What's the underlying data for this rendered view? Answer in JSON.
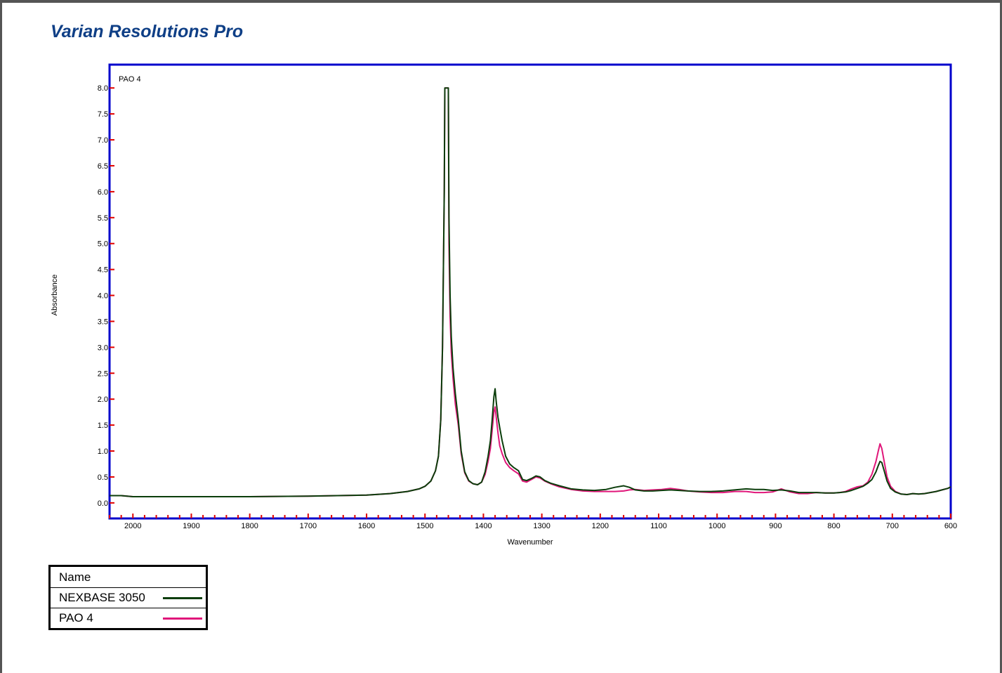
{
  "app_title": "Varian Resolutions Pro",
  "chart_data": {
    "type": "line",
    "title": "PAO 4",
    "xlabel": "Wavenumber",
    "ylabel": "Absorbance",
    "xlim": [
      2040,
      600
    ],
    "ylim": [
      -0.3,
      8.45
    ],
    "x_reversed": true,
    "x_ticks": [
      2000,
      1900,
      1800,
      1700,
      1600,
      1500,
      1400,
      1300,
      1200,
      1100,
      1000,
      900,
      800,
      700,
      600
    ],
    "y_ticks": [
      0.0,
      0.5,
      1.0,
      1.5,
      2.0,
      2.5,
      3.0,
      3.5,
      4.0,
      4.5,
      5.0,
      5.5,
      6.0,
      6.5,
      7.0,
      7.5,
      8.0
    ],
    "y_tick_labels": [
      "0.0",
      "0.5",
      "1.0",
      "1.5",
      "2.0",
      "2.5",
      "3.0",
      "3.5",
      "4.0",
      "4.5",
      "5.0",
      "5.5",
      "6.0",
      "6.5",
      "7.0",
      "7.5",
      "8.0"
    ],
    "grid": false,
    "series": [
      {
        "name": "NEXBASE 3050",
        "color": "#0b3d0b",
        "x": [
          2040,
          2020,
          2000,
          1900,
          1800,
          1700,
          1650,
          1600,
          1560,
          1530,
          1510,
          1500,
          1490,
          1482,
          1477,
          1473,
          1470,
          1467,
          1466,
          1460,
          1459,
          1457,
          1455,
          1452,
          1448,
          1443,
          1438,
          1432,
          1425,
          1418,
          1410,
          1403,
          1397,
          1392,
          1388,
          1385,
          1382,
          1380,
          1378,
          1375,
          1372,
          1368,
          1362,
          1355,
          1348,
          1340,
          1333,
          1326,
          1318,
          1310,
          1303,
          1295,
          1285,
          1270,
          1250,
          1230,
          1210,
          1190,
          1175,
          1160,
          1150,
          1140,
          1125,
          1110,
          1095,
          1080,
          1065,
          1050,
          1030,
          1010,
          990,
          970,
          950,
          935,
          920,
          905,
          890,
          875,
          860,
          845,
          830,
          815,
          800,
          790,
          780,
          770,
          760,
          750,
          742,
          735,
          728,
          724,
          721,
          718,
          714,
          709,
          703,
          695,
          685,
          675,
          665,
          655,
          645,
          635,
          625,
          615,
          605,
          600
        ],
        "y": [
          0.14,
          0.14,
          0.12,
          0.12,
          0.12,
          0.13,
          0.14,
          0.15,
          0.18,
          0.22,
          0.27,
          0.32,
          0.42,
          0.62,
          0.9,
          1.6,
          3.0,
          6.0,
          8.0,
          8.0,
          5.5,
          4.0,
          3.2,
          2.6,
          2.1,
          1.6,
          1.0,
          0.6,
          0.43,
          0.37,
          0.35,
          0.4,
          0.6,
          0.9,
          1.2,
          1.6,
          2.05,
          2.2,
          1.95,
          1.65,
          1.45,
          1.2,
          0.9,
          0.75,
          0.68,
          0.62,
          0.45,
          0.43,
          0.47,
          0.52,
          0.5,
          0.43,
          0.38,
          0.33,
          0.27,
          0.25,
          0.24,
          0.26,
          0.3,
          0.33,
          0.3,
          0.25,
          0.23,
          0.23,
          0.24,
          0.25,
          0.24,
          0.23,
          0.22,
          0.22,
          0.23,
          0.25,
          0.27,
          0.26,
          0.26,
          0.24,
          0.25,
          0.23,
          0.2,
          0.2,
          0.2,
          0.19,
          0.19,
          0.2,
          0.21,
          0.24,
          0.28,
          0.32,
          0.38,
          0.45,
          0.6,
          0.72,
          0.8,
          0.78,
          0.62,
          0.42,
          0.28,
          0.21,
          0.17,
          0.16,
          0.18,
          0.17,
          0.18,
          0.2,
          0.22,
          0.25,
          0.28,
          0.31
        ]
      },
      {
        "name": "PAO 4",
        "color": "#e0177a",
        "x": [
          2040,
          2020,
          2000,
          1900,
          1800,
          1700,
          1650,
          1600,
          1560,
          1530,
          1510,
          1500,
          1490,
          1482,
          1477,
          1473,
          1470,
          1467,
          1466,
          1460,
          1459,
          1457,
          1455,
          1452,
          1448,
          1443,
          1438,
          1432,
          1425,
          1418,
          1410,
          1403,
          1397,
          1392,
          1388,
          1385,
          1382,
          1380,
          1378,
          1375,
          1372,
          1368,
          1362,
          1355,
          1348,
          1340,
          1333,
          1326,
          1318,
          1310,
          1303,
          1295,
          1285,
          1270,
          1250,
          1230,
          1210,
          1190,
          1175,
          1160,
          1150,
          1140,
          1125,
          1110,
          1095,
          1080,
          1065,
          1050,
          1030,
          1010,
          990,
          970,
          950,
          935,
          920,
          905,
          890,
          875,
          860,
          845,
          830,
          815,
          800,
          790,
          780,
          770,
          760,
          750,
          742,
          735,
          728,
          724,
          721,
          718,
          714,
          709,
          703,
          695,
          685,
          675,
          665,
          655,
          645,
          635,
          625,
          615,
          605,
          600
        ],
        "y": [
          0.14,
          0.14,
          0.12,
          0.12,
          0.12,
          0.13,
          0.14,
          0.15,
          0.18,
          0.22,
          0.27,
          0.32,
          0.42,
          0.62,
          0.9,
          1.6,
          3.0,
          6.0,
          8.0,
          8.0,
          5.0,
          3.6,
          2.9,
          2.4,
          1.9,
          1.5,
          0.95,
          0.58,
          0.42,
          0.37,
          0.35,
          0.4,
          0.55,
          0.8,
          1.05,
          1.4,
          1.75,
          1.85,
          1.65,
          1.35,
          1.1,
          0.95,
          0.78,
          0.68,
          0.62,
          0.56,
          0.42,
          0.4,
          0.45,
          0.5,
          0.48,
          0.42,
          0.37,
          0.31,
          0.26,
          0.23,
          0.22,
          0.22,
          0.22,
          0.23,
          0.25,
          0.26,
          0.24,
          0.25,
          0.26,
          0.28,
          0.26,
          0.23,
          0.21,
          0.2,
          0.2,
          0.22,
          0.22,
          0.2,
          0.2,
          0.21,
          0.27,
          0.21,
          0.18,
          0.18,
          0.2,
          0.19,
          0.19,
          0.2,
          0.22,
          0.27,
          0.31,
          0.33,
          0.4,
          0.55,
          0.8,
          1.0,
          1.14,
          1.05,
          0.8,
          0.5,
          0.32,
          0.22,
          0.17,
          0.16,
          0.18,
          0.17,
          0.18,
          0.2,
          0.22,
          0.25,
          0.28,
          0.31
        ]
      }
    ]
  },
  "legend": {
    "header": "Name",
    "entries": [
      {
        "label": "NEXBASE 3050",
        "color": "#0b3d0b"
      },
      {
        "label": "PAO 4",
        "color": "#e0177a"
      }
    ]
  }
}
